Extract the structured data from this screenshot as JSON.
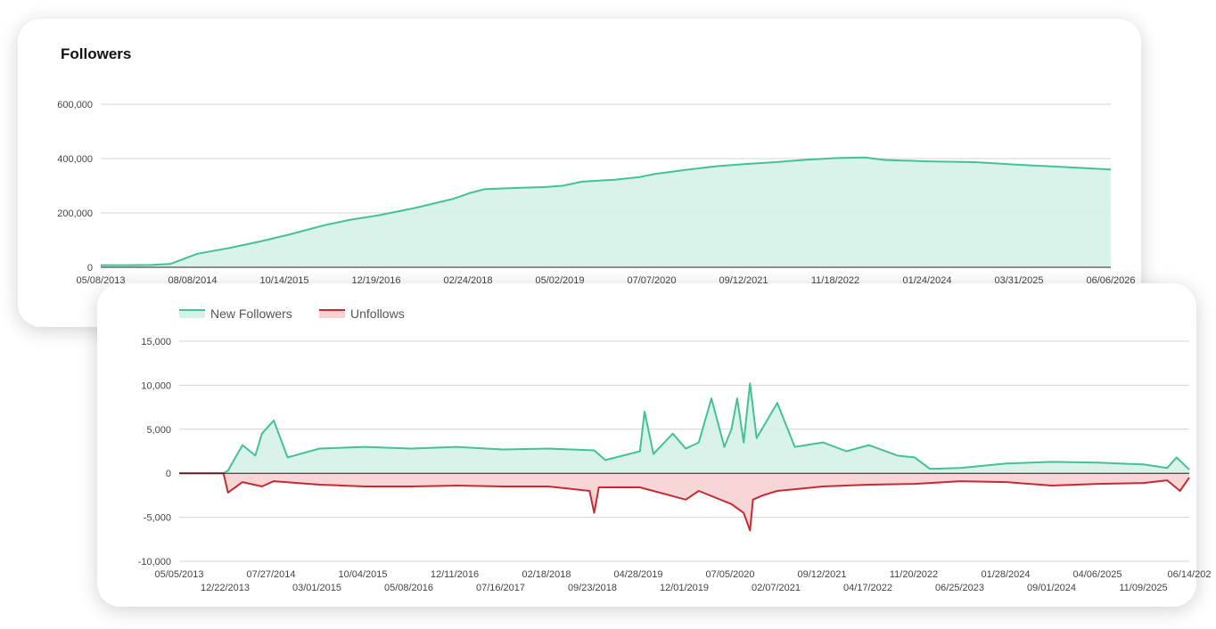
{
  "colors": {
    "growth": "#43c197",
    "growth_fill": "#d5f2e8",
    "unfollow": "#c42b32",
    "unfollow_fill": "#f7d2d3",
    "grid": "#d4d4d4",
    "axis": "#222222"
  },
  "chart_data": [
    {
      "type": "area",
      "title": "Followers",
      "xlabel": "",
      "ylabel": "",
      "ylim": [
        0,
        600000
      ],
      "yticks": [
        0,
        200000,
        400000,
        600000
      ],
      "ytick_labels": [
        "0",
        "200,000",
        "400,000",
        "600,000"
      ],
      "xtick_labels": [
        "05/08/2013",
        "08/08/2014",
        "10/14/2015",
        "12/19/2016",
        "02/24/2018",
        "05/02/2019",
        "07/07/2020",
        "09/12/2021",
        "11/18/2022",
        "01/24/2024",
        "03/31/2025",
        "06/06/2026"
      ],
      "grid": true,
      "series": [
        {
          "x": [
            "05/08/2013",
            "09/01/2013",
            "01/01/2014",
            "04/01/2014",
            "08/08/2014",
            "01/01/2015",
            "06/01/2015",
            "10/14/2015",
            "04/01/2016",
            "08/01/2016",
            "12/19/2016",
            "06/01/2017",
            "12/01/2017",
            "02/24/2018",
            "05/01/2018",
            "10/01/2018",
            "02/01/2019",
            "05/02/2019",
            "08/01/2019",
            "01/01/2020",
            "05/01/2020",
            "07/07/2020",
            "12/01/2020",
            "05/01/2021",
            "09/12/2021",
            "02/01/2022",
            "07/01/2022",
            "11/18/2022",
            "04/01/2023",
            "07/01/2023",
            "01/24/2024",
            "09/01/2024",
            "03/31/2025",
            "10/01/2025",
            "06/06/2026"
          ],
          "y": [
            8000,
            8000,
            8500,
            12000,
            50000,
            70000,
            95000,
            120000,
            155000,
            175000,
            192000,
            218000,
            252000,
            275000,
            288000,
            292000,
            295000,
            300000,
            315000,
            322000,
            332000,
            343000,
            358000,
            372000,
            380000,
            387000,
            396000,
            402000,
            404000,
            395000,
            390000,
            387000,
            377000,
            370000,
            360000
          ]
        }
      ]
    },
    {
      "type": "area",
      "title": "",
      "xlabel": "",
      "ylabel": "",
      "ylim": [
        -10000,
        15000
      ],
      "yticks": [
        -10000,
        -5000,
        0,
        5000,
        10000,
        15000
      ],
      "ytick_labels": [
        "-10,000",
        "-5,000",
        "0",
        "5,000",
        "10,000",
        "15,000"
      ],
      "xtick_labels": [
        "05/05/2013",
        "12/22/2013",
        "07/27/2014",
        "03/01/2015",
        "10/04/2015",
        "05/08/2016",
        "12/11/2016",
        "07/16/2017",
        "02/18/2018",
        "09/23/2018",
        "04/28/2019",
        "12/01/2019",
        "07/05/2020",
        "02/07/2021",
        "09/12/2021",
        "04/17/2022",
        "11/20/2022",
        "06/25/2023",
        "01/28/2024",
        "09/01/2024",
        "04/06/2025",
        "11/09/2025",
        "06/14/202"
      ],
      "legend": "top-left",
      "grid": true,
      "series": [
        {
          "name": "New Followers",
          "x": [
            "05/05/2013",
            "12/01/2013",
            "12/22/2013",
            "03/01/2014",
            "05/01/2014",
            "06/01/2014",
            "07/27/2014",
            "10/01/2014",
            "03/01/2015",
            "10/04/2015",
            "05/08/2016",
            "12/11/2016",
            "07/16/2017",
            "02/18/2018",
            "09/23/2018",
            "11/15/2018",
            "04/28/2019",
            "05/20/2019",
            "07/01/2019",
            "10/01/2019",
            "12/01/2019",
            "02/01/2020",
            "04/01/2020",
            "06/01/2020",
            "07/05/2020",
            "08/01/2020",
            "09/01/2020",
            "10/01/2020",
            "11/01/2020",
            "02/07/2021",
            "05/01/2021",
            "09/12/2021",
            "01/01/2022",
            "04/17/2022",
            "09/01/2022",
            "11/20/2022",
            "02/01/2023",
            "06/25/2023",
            "01/28/2024",
            "09/01/2024",
            "04/06/2025",
            "11/09/2025",
            "03/01/2026",
            "04/15/2026",
            "06/14/2026"
          ],
          "y": [
            0,
            0,
            300,
            3200,
            2000,
            4500,
            6000,
            1800,
            2800,
            3000,
            2800,
            3000,
            2700,
            2800,
            2600,
            1500,
            2500,
            7000,
            2200,
            4500,
            2800,
            3500,
            8500,
            3000,
            5000,
            8500,
            3500,
            10200,
            4000,
            8000,
            3000,
            3500,
            2500,
            3200,
            2000,
            1800,
            500,
            600,
            1100,
            1300,
            1200,
            1000,
            600,
            1800,
            400
          ]
        },
        {
          "name": "Unfollows",
          "x": [
            "05/05/2013",
            "12/01/2013",
            "12/22/2013",
            "03/01/2014",
            "06/01/2014",
            "07/27/2014",
            "03/01/2015",
            "10/04/2015",
            "05/08/2016",
            "12/11/2016",
            "07/16/2017",
            "02/18/2018",
            "09/01/2018",
            "09/23/2018",
            "10/15/2018",
            "04/28/2019",
            "12/01/2019",
            "02/01/2020",
            "07/05/2020",
            "09/01/2020",
            "10/01/2020",
            "10/15/2020",
            "12/01/2020",
            "02/07/2021",
            "09/12/2021",
            "04/17/2022",
            "11/20/2022",
            "06/25/2023",
            "01/28/2024",
            "09/01/2024",
            "04/06/2025",
            "11/09/2025",
            "03/01/2026",
            "05/01/2026",
            "06/14/2026"
          ],
          "y": [
            0,
            0,
            -2200,
            -1000,
            -1500,
            -900,
            -1300,
            -1500,
            -1500,
            -1400,
            -1500,
            -1500,
            -2000,
            -4500,
            -1600,
            -1600,
            -3000,
            -2000,
            -3500,
            -4500,
            -6500,
            -3000,
            -2500,
            -2000,
            -1500,
            -1300,
            -1200,
            -900,
            -1000,
            -1400,
            -1200,
            -1100,
            -800,
            -2000,
            -500
          ]
        }
      ]
    }
  ]
}
